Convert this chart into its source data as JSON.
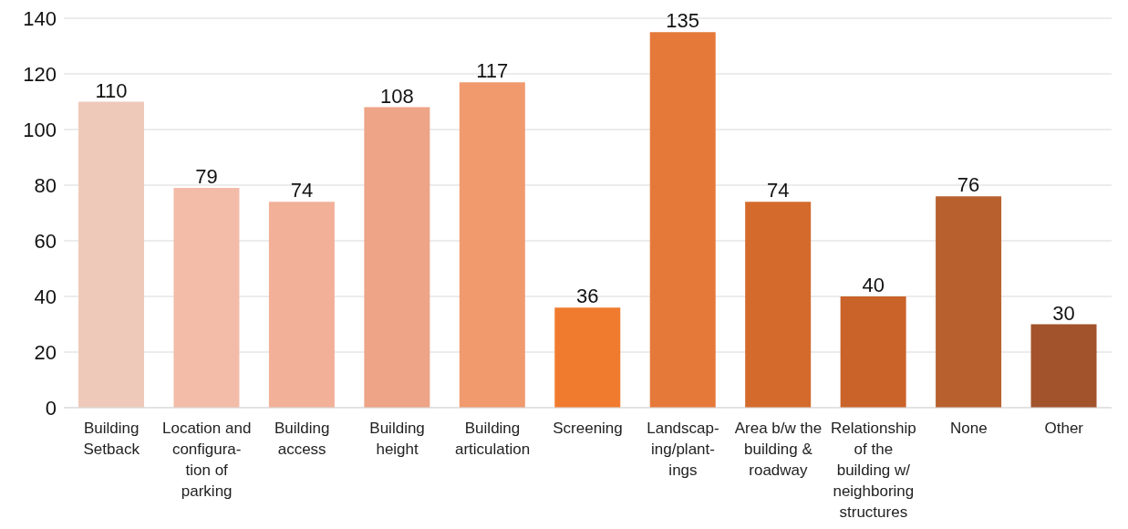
{
  "chart_data": {
    "type": "bar",
    "categories": [
      "Building Setback",
      "Location and configura-tion of parking",
      "Building access",
      "Building height",
      "Building articulation",
      "Screening",
      "Landscap-ing/plant-ings",
      "Area b/w the building & roadway",
      "Relationship of the building w/ neighboring structures",
      "None",
      "Other"
    ],
    "values": [
      110,
      79,
      74,
      108,
      117,
      36,
      135,
      74,
      40,
      76,
      30
    ],
    "colors": [
      "#eec9ba",
      "#f3bca8",
      "#f2b099",
      "#eea486",
      "#f09a6e",
      "#f07b2e",
      "#e5793a",
      "#d46a2b",
      "#ca632a",
      "#b8612f",
      "#a2532c"
    ],
    "ylim": [
      0,
      140
    ],
    "yticks": [
      0,
      20,
      40,
      60,
      80,
      100,
      120,
      140
    ],
    "grid": "y",
    "data_labels": true
  }
}
